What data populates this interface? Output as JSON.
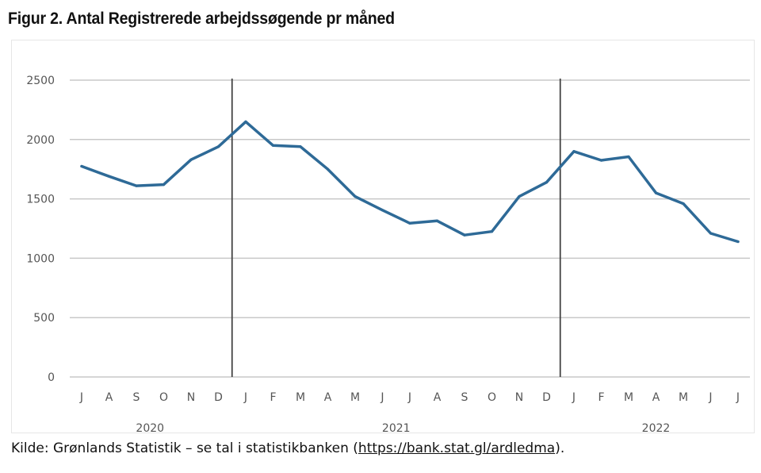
{
  "figure": {
    "title": "Figur 2. Antal Registrerede arbejdssøgende pr måned"
  },
  "source": {
    "prefix": "Kilde: Grønlands Statistik – se tal i statistikbanken (",
    "link_text": "https://bank.stat.gl/ardledma",
    "suffix": ")."
  },
  "chart_data": {
    "type": "line",
    "title": "",
    "xlabel": "",
    "ylabel": "",
    "ylim": [
      0,
      2500
    ],
    "yticks": [
      0,
      500,
      1000,
      1500,
      2000,
      2500
    ],
    "grid": "horizontal",
    "legend": "none",
    "categories": [
      "J",
      "A",
      "S",
      "O",
      "N",
      "D",
      "J",
      "F",
      "M",
      "A",
      "M",
      "J",
      "J",
      "A",
      "S",
      "O",
      "N",
      "D",
      "J",
      "F",
      "M",
      "A",
      "M",
      "J",
      "J"
    ],
    "year_labels": [
      {
        "label": "2020",
        "center_index": 2.5
      },
      {
        "label": "2021",
        "center_index": 11.5
      },
      {
        "label": "2022",
        "center_index": 21
      }
    ],
    "year_separators_after_index": [
      5,
      17
    ],
    "series": [
      {
        "color": "#2e6a97",
        "values": [
          1775,
          1690,
          1610,
          1620,
          1830,
          1940,
          2150,
          1950,
          1940,
          1750,
          1520,
          1405,
          1295,
          1315,
          1195,
          1225,
          1520,
          1640,
          1900,
          1825,
          1855,
          1550,
          1460,
          1210,
          1140
        ]
      }
    ],
    "colors": {
      "gridline": "#c8c8c8",
      "separator": "#444444",
      "axis_text": "#555555"
    }
  }
}
